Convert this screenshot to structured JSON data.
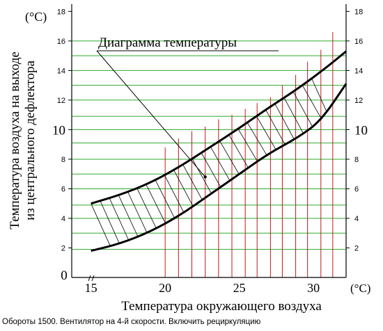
{
  "chart_data": {
    "type": "area",
    "title": "Диаграмма температуры",
    "xlabel": "Температура окружающего воздуха",
    "x_unit": "(°C)",
    "ylabel_line1": "Температура воздуха на выходе",
    "ylabel_line2": "из центрального дефлектора",
    "y_unit": "(°C)",
    "x_ticks": [
      "15",
      "20",
      "25",
      "30"
    ],
    "x_origin_label": "0",
    "xlim": [
      13.7,
      32.2
    ],
    "ylim": [
      0,
      18.3
    ],
    "y_ticks_left": [
      "2",
      "4",
      "6",
      "8",
      "10",
      "12",
      "14",
      "16",
      "18"
    ],
    "y_ticks_right": [
      "2",
      "4",
      "6",
      "8",
      "10",
      "12",
      "14",
      "16",
      "18"
    ],
    "upper_curve": [
      {
        "x": 15,
        "y": 5.0
      },
      {
        "x": 17,
        "y": 5.6
      },
      {
        "x": 19,
        "y": 6.4
      },
      {
        "x": 21,
        "y": 7.5
      },
      {
        "x": 23,
        "y": 8.8
      },
      {
        "x": 25,
        "y": 10.1
      },
      {
        "x": 27,
        "y": 11.5
      },
      {
        "x": 29,
        "y": 12.8
      },
      {
        "x": 31,
        "y": 14.3
      },
      {
        "x": 32.2,
        "y": 15.3
      }
    ],
    "lower_curve": [
      {
        "x": 15,
        "y": 1.8
      },
      {
        "x": 17,
        "y": 2.3
      },
      {
        "x": 19,
        "y": 3.1
      },
      {
        "x": 21,
        "y": 4.2
      },
      {
        "x": 23,
        "y": 5.6
      },
      {
        "x": 25,
        "y": 7.0
      },
      {
        "x": 27,
        "y": 8.4
      },
      {
        "x": 29,
        "y": 9.5
      },
      {
        "x": 30.5,
        "y": 10.6
      },
      {
        "x": 32.2,
        "y": 13.1
      }
    ],
    "highlight_point": {
      "x": 22.7,
      "y": 6.8
    },
    "grid_green_y": [
      1.9,
      3.0,
      4.0,
      4.9,
      6.0,
      7.0,
      8.0,
      9.1,
      10.0,
      10.9,
      12.0,
      13.0,
      14.0,
      15.0,
      16.0
    ],
    "red_lines": [
      {
        "x": 20.0,
        "top": 8.8
      },
      {
        "x": 20.9,
        "top": 9.4
      },
      {
        "x": 21.8,
        "top": 9.9
      },
      {
        "x": 22.7,
        "top": 10.2
      },
      {
        "x": 23.6,
        "top": 10.7
      },
      {
        "x": 24.5,
        "top": 11.0
      },
      {
        "x": 25.4,
        "top": 11.4
      },
      {
        "x": 26.2,
        "top": 11.8
      },
      {
        "x": 27.1,
        "top": 12.2
      },
      {
        "x": 27.9,
        "top": 13.0
      },
      {
        "x": 28.8,
        "top": 13.7
      },
      {
        "x": 29.6,
        "top": 14.6
      },
      {
        "x": 30.5,
        "top": 15.4
      },
      {
        "x": 31.3,
        "top": 16.6
      }
    ],
    "colors": {
      "grid": "#2eaa2e",
      "red": "#c21818",
      "curve": "#000000"
    },
    "caption": "Обороты 1500.  Вентилятор на 4-й скорости.  Включить  рециркуляцию"
  }
}
